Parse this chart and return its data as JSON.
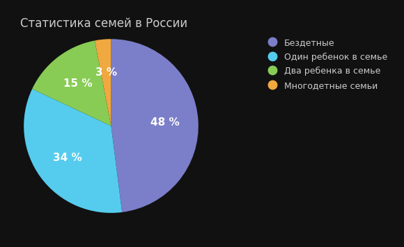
{
  "title": "Статистика семей в России",
  "labels": [
    "Бездетные",
    "Один ребенок в семье",
    "Два ребенка в семье",
    "Многодетные семьи"
  ],
  "values": [
    48,
    34,
    15,
    3
  ],
  "colors": [
    "#7b7ec8",
    "#55ccee",
    "#88cc55",
    "#f0a840"
  ],
  "pct_labels": [
    "48 %",
    "34 %",
    "15 %",
    "3 %"
  ],
  "background_color": "#111111",
  "title_fontsize": 12,
  "legend_fontsize": 9,
  "pct_fontsize": 11,
  "text_color": "#cccccc"
}
